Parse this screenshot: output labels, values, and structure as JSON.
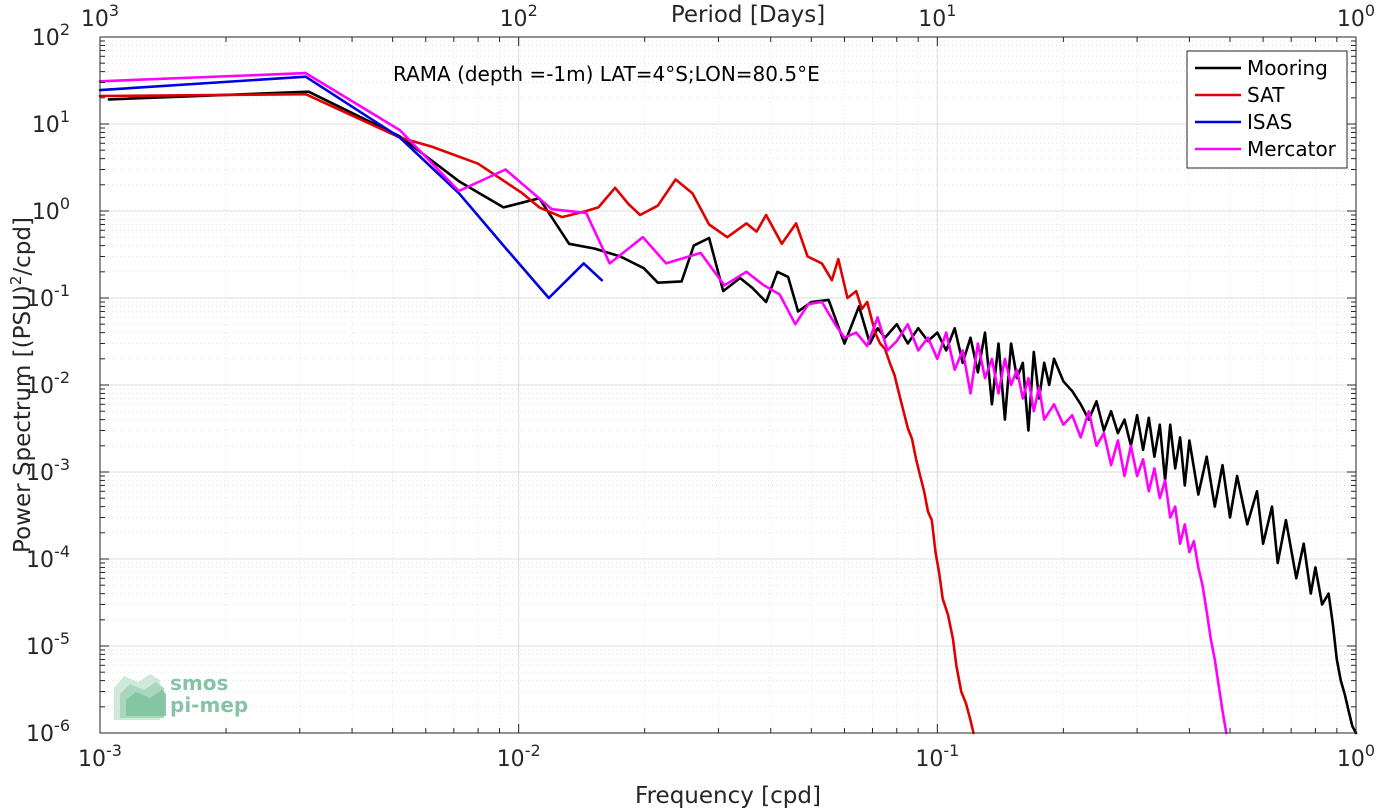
{
  "chart_data": {
    "type": "line",
    "annotation": "RAMA (depth =-1m) LAT=4°S;LON=80.5°E",
    "xlabel": "Frequency [cpd]",
    "ylabel": "Power Spectrum [(PSU)²/cpd]",
    "x2label": "Period [Days]",
    "xscale": "log",
    "yscale": "log",
    "xlim": [
      0.001,
      1
    ],
    "ylim": [
      1e-06,
      100
    ],
    "grid": true,
    "legend_position": "top-right",
    "x_ticks": [
      {
        "value": 0.001,
        "base": "10",
        "exp": "-3"
      },
      {
        "value": 0.01,
        "base": "10",
        "exp": "-2"
      },
      {
        "value": 0.1,
        "base": "10",
        "exp": "-1"
      },
      {
        "value": 1,
        "base": "10",
        "exp": "0"
      }
    ],
    "y_ticks": [
      {
        "value": 1e-06,
        "base": "10",
        "exp": "-6"
      },
      {
        "value": 1e-05,
        "base": "10",
        "exp": "-5"
      },
      {
        "value": 0.0001,
        "base": "10",
        "exp": "-4"
      },
      {
        "value": 0.001,
        "base": "10",
        "exp": "-3"
      },
      {
        "value": 0.01,
        "base": "10",
        "exp": "-2"
      },
      {
        "value": 0.1,
        "base": "10",
        "exp": "-1"
      },
      {
        "value": 1,
        "base": "10",
        "exp": "0"
      },
      {
        "value": 10,
        "base": "10",
        "exp": "1"
      },
      {
        "value": 100,
        "base": "10",
        "exp": "2"
      }
    ],
    "x2_ticks": [
      {
        "value": 0.001,
        "base": "10",
        "exp": "3"
      },
      {
        "value": 0.01,
        "base": "10",
        "exp": "2"
      },
      {
        "value": 0.1,
        "base": "10",
        "exp": "1"
      },
      {
        "value": 1,
        "base": "10",
        "exp": "0"
      }
    ],
    "series": [
      {
        "name": "Mooring",
        "color": "#000000",
        "points": [
          [
            0.00105,
            19.2
          ],
          [
            0.00315,
            23.5
          ],
          [
            0.0052,
            7.2
          ],
          [
            0.0072,
            2.2
          ],
          [
            0.0092,
            1.1
          ],
          [
            0.0112,
            1.4
          ],
          [
            0.0132,
            0.42
          ],
          [
            0.0152,
            0.37
          ],
          [
            0.0175,
            0.3
          ],
          [
            0.0199,
            0.22
          ],
          [
            0.0215,
            0.15
          ],
          [
            0.0245,
            0.155
          ],
          [
            0.0262,
            0.4
          ],
          [
            0.0285,
            0.49
          ],
          [
            0.0308,
            0.12
          ],
          [
            0.0338,
            0.17
          ],
          [
            0.0362,
            0.13
          ],
          [
            0.039,
            0.09
          ],
          [
            0.0415,
            0.2
          ],
          [
            0.044,
            0.175
          ],
          [
            0.0465,
            0.07
          ],
          [
            0.05,
            0.09
          ],
          [
            0.055,
            0.095
          ],
          [
            0.06,
            0.03
          ],
          [
            0.065,
            0.08
          ],
          [
            0.069,
            0.03
          ],
          [
            0.072,
            0.045
          ],
          [
            0.075,
            0.035
          ],
          [
            0.08,
            0.05
          ],
          [
            0.085,
            0.03
          ],
          [
            0.09,
            0.045
          ],
          [
            0.095,
            0.032
          ],
          [
            0.1,
            0.04
          ],
          [
            0.105,
            0.025
          ],
          [
            0.11,
            0.045
          ],
          [
            0.115,
            0.018
          ],
          [
            0.12,
            0.035
          ],
          [
            0.125,
            0.014
          ],
          [
            0.13,
            0.04
          ],
          [
            0.135,
            0.006
          ],
          [
            0.14,
            0.03
          ],
          [
            0.145,
            0.004
          ],
          [
            0.15,
            0.03
          ],
          [
            0.155,
            0.012
          ],
          [
            0.16,
            0.018
          ],
          [
            0.165,
            0.003
          ],
          [
            0.17,
            0.024
          ],
          [
            0.175,
            0.007
          ],
          [
            0.18,
            0.018
          ],
          [
            0.185,
            0.01
          ],
          [
            0.19,
            0.02
          ],
          [
            0.2,
            0.011
          ],
          [
            0.21,
            0.0085
          ],
          [
            0.22,
            0.006
          ],
          [
            0.23,
            0.004
          ],
          [
            0.24,
            0.0065
          ],
          [
            0.25,
            0.003
          ],
          [
            0.26,
            0.005
          ],
          [
            0.27,
            0.0028
          ],
          [
            0.28,
            0.004
          ],
          [
            0.29,
            0.002
          ],
          [
            0.3,
            0.0045
          ],
          [
            0.31,
            0.0018
          ],
          [
            0.32,
            0.0042
          ],
          [
            0.33,
            0.0015
          ],
          [
            0.34,
            0.0035
          ],
          [
            0.35,
            0.0008
          ],
          [
            0.36,
            0.0035
          ],
          [
            0.37,
            0.0011
          ],
          [
            0.38,
            0.0025
          ],
          [
            0.39,
            0.0007
          ],
          [
            0.4,
            0.0023
          ],
          [
            0.42,
            0.00055
          ],
          [
            0.44,
            0.0015
          ],
          [
            0.46,
            0.0004
          ],
          [
            0.48,
            0.0012
          ],
          [
            0.5,
            0.0003
          ],
          [
            0.52,
            0.0009
          ],
          [
            0.55,
            0.00025
          ],
          [
            0.58,
            0.0006
          ],
          [
            0.6,
            0.00015
          ],
          [
            0.63,
            0.0004
          ],
          [
            0.65,
            9e-05
          ],
          [
            0.68,
            0.00028
          ],
          [
            0.72,
            6e-05
          ],
          [
            0.75,
            0.00015
          ],
          [
            0.78,
            4e-05
          ],
          [
            0.8,
            8e-05
          ],
          [
            0.83,
            3e-05
          ],
          [
            0.86,
            4e-05
          ],
          [
            0.88,
            1.8e-05
          ],
          [
            0.9,
            7e-06
          ],
          [
            0.92,
            4e-06
          ],
          [
            0.94,
            2.8e-06
          ],
          [
            0.96,
            1.8e-06
          ],
          [
            0.98,
            1.2e-06
          ],
          [
            1.0,
            1e-06
          ]
        ]
      },
      {
        "name": "SAT",
        "color": "#e00000",
        "points": [
          [
            0.001,
            21.0
          ],
          [
            0.0031,
            22.0
          ],
          [
            0.0052,
            7.0
          ],
          [
            0.0062,
            5.5
          ],
          [
            0.008,
            3.5
          ],
          [
            0.0102,
            1.6
          ],
          [
            0.0112,
            1.1
          ],
          [
            0.0127,
            0.85
          ],
          [
            0.0145,
            1.0
          ],
          [
            0.0155,
            1.1
          ],
          [
            0.017,
            1.85
          ],
          [
            0.0183,
            1.2
          ],
          [
            0.0195,
            0.9
          ],
          [
            0.0215,
            1.15
          ],
          [
            0.0237,
            2.3
          ],
          [
            0.026,
            1.6
          ],
          [
            0.0285,
            0.7
          ],
          [
            0.0315,
            0.5
          ],
          [
            0.035,
            0.72
          ],
          [
            0.037,
            0.58
          ],
          [
            0.039,
            0.9
          ],
          [
            0.0425,
            0.42
          ],
          [
            0.046,
            0.72
          ],
          [
            0.049,
            0.3
          ],
          [
            0.053,
            0.25
          ],
          [
            0.056,
            0.16
          ],
          [
            0.058,
            0.28
          ],
          [
            0.061,
            0.1
          ],
          [
            0.064,
            0.12
          ],
          [
            0.066,
            0.075
          ],
          [
            0.068,
            0.09
          ],
          [
            0.071,
            0.04
          ],
          [
            0.073,
            0.03
          ],
          [
            0.075,
            0.026
          ],
          [
            0.077,
            0.018
          ],
          [
            0.079,
            0.013
          ],
          [
            0.081,
            0.008
          ],
          [
            0.083,
            0.005
          ],
          [
            0.085,
            0.0032
          ],
          [
            0.087,
            0.0024
          ],
          [
            0.089,
            0.0014
          ],
          [
            0.091,
            0.0009
          ],
          [
            0.093,
            0.0006
          ],
          [
            0.095,
            0.00035
          ],
          [
            0.097,
            0.00028
          ],
          [
            0.099,
            0.00012
          ],
          [
            0.101,
            7e-05
          ],
          [
            0.103,
            3.5e-05
          ],
          [
            0.106,
            2.3e-05
          ],
          [
            0.109,
            1.2e-05
          ],
          [
            0.111,
            6e-06
          ],
          [
            0.114,
            3e-06
          ],
          [
            0.117,
            2.2e-06
          ],
          [
            0.12,
            1.4e-06
          ],
          [
            0.122,
            1e-06
          ]
        ]
      },
      {
        "name": "ISAS",
        "color": "#0000e0",
        "points": [
          [
            0.001,
            24.5
          ],
          [
            0.0031,
            35.0
          ],
          [
            0.0052,
            7.0
          ],
          [
            0.0072,
            1.6
          ],
          [
            0.0092,
            0.4
          ],
          [
            0.0118,
            0.1
          ],
          [
            0.0143,
            0.25
          ],
          [
            0.0158,
            0.16
          ]
        ]
      },
      {
        "name": "Mercator",
        "color": "#ff00ff",
        "points": [
          [
            0.001,
            31.0
          ],
          [
            0.0031,
            38.5
          ],
          [
            0.0052,
            8.5
          ],
          [
            0.0072,
            1.7
          ],
          [
            0.0093,
            3.0
          ],
          [
            0.012,
            1.05
          ],
          [
            0.0145,
            0.95
          ],
          [
            0.0165,
            0.25
          ],
          [
            0.0198,
            0.5
          ],
          [
            0.0225,
            0.25
          ],
          [
            0.0272,
            0.33
          ],
          [
            0.031,
            0.14
          ],
          [
            0.035,
            0.2
          ],
          [
            0.0385,
            0.14
          ],
          [
            0.042,
            0.11
          ],
          [
            0.0458,
            0.05
          ],
          [
            0.0492,
            0.085
          ],
          [
            0.053,
            0.09
          ],
          [
            0.057,
            0.05
          ],
          [
            0.06,
            0.035
          ],
          [
            0.064,
            0.04
          ],
          [
            0.068,
            0.028
          ],
          [
            0.072,
            0.06
          ],
          [
            0.076,
            0.025
          ],
          [
            0.08,
            0.032
          ],
          [
            0.085,
            0.05
          ],
          [
            0.09,
            0.025
          ],
          [
            0.095,
            0.035
          ],
          [
            0.1,
            0.02
          ],
          [
            0.105,
            0.04
          ],
          [
            0.11,
            0.015
          ],
          [
            0.115,
            0.025
          ],
          [
            0.12,
            0.008
          ],
          [
            0.125,
            0.03
          ],
          [
            0.13,
            0.012
          ],
          [
            0.135,
            0.02
          ],
          [
            0.14,
            0.008
          ],
          [
            0.145,
            0.02
          ],
          [
            0.15,
            0.01
          ],
          [
            0.155,
            0.015
          ],
          [
            0.16,
            0.007
          ],
          [
            0.165,
            0.012
          ],
          [
            0.17,
            0.005
          ],
          [
            0.175,
            0.0095
          ],
          [
            0.18,
            0.004
          ],
          [
            0.19,
            0.006
          ],
          [
            0.2,
            0.0035
          ],
          [
            0.21,
            0.0045
          ],
          [
            0.22,
            0.0025
          ],
          [
            0.23,
            0.005
          ],
          [
            0.24,
            0.002
          ],
          [
            0.25,
            0.0028
          ],
          [
            0.26,
            0.0012
          ],
          [
            0.27,
            0.0023
          ],
          [
            0.28,
            0.0009
          ],
          [
            0.29,
            0.002
          ],
          [
            0.3,
            0.0009
          ],
          [
            0.31,
            0.0014
          ],
          [
            0.32,
            0.0006
          ],
          [
            0.33,
            0.0011
          ],
          [
            0.34,
            0.0005
          ],
          [
            0.35,
            0.0008
          ],
          [
            0.36,
            0.0003
          ],
          [
            0.37,
            0.0004
          ],
          [
            0.38,
            0.00015
          ],
          [
            0.39,
            0.00025
          ],
          [
            0.4,
            0.00012
          ],
          [
            0.41,
            0.00016
          ],
          [
            0.42,
            8e-05
          ],
          [
            0.43,
            5e-05
          ],
          [
            0.44,
            2.5e-05
          ],
          [
            0.45,
            1.2e-05
          ],
          [
            0.46,
            7e-06
          ],
          [
            0.47,
            3.5e-06
          ],
          [
            0.48,
            1.8e-06
          ],
          [
            0.49,
            1e-06
          ]
        ]
      }
    ]
  },
  "watermark": {
    "line1": "smos",
    "line2": "pi-mep",
    "color": "#5fb08a"
  }
}
